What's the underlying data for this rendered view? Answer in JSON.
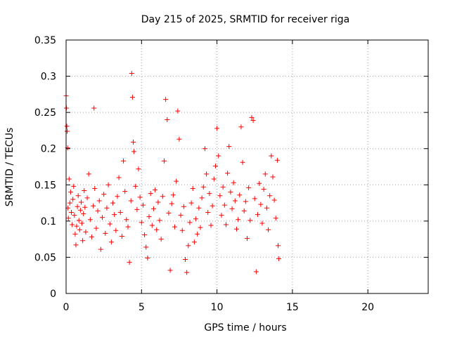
{
  "chart_data": {
    "type": "scatter",
    "title": "Day 215 of 2025, SRMTID for receiver riga",
    "xlabel": "GPS time / hours",
    "ylabel": "SRMTID / TECUs",
    "xlim": [
      0,
      24
    ],
    "ylim": [
      0,
      0.35
    ],
    "x_ticks": [
      0,
      5,
      10,
      15,
      20
    ],
    "x_tick_labels": [
      "0",
      "5",
      "10",
      "15",
      "20"
    ],
    "y_ticks": [
      0,
      0.05,
      0.1,
      0.15,
      0.2,
      0.25,
      0.3,
      0.35
    ],
    "y_tick_labels": [
      "0",
      "0.05",
      "0.1",
      "0.15",
      "0.2",
      "0.25",
      "0.3",
      "0.35"
    ],
    "grid": true,
    "marker": "+",
    "color": "#ff0000",
    "series": [
      {
        "points": [
          [
            0.0,
            0.273
          ],
          [
            0.02,
            0.256
          ],
          [
            0.05,
            0.231
          ],
          [
            0.07,
            0.224
          ],
          [
            0.1,
            0.201
          ],
          [
            0.12,
            0.118
          ],
          [
            0.15,
            0.104
          ],
          [
            0.2,
            0.158
          ],
          [
            0.25,
            0.125
          ],
          [
            0.3,
            0.14
          ],
          [
            0.35,
            0.112
          ],
          [
            0.4,
            0.095
          ],
          [
            0.45,
            0.13
          ],
          [
            0.5,
            0.148
          ],
          [
            0.55,
            0.108
          ],
          [
            0.6,
            0.082
          ],
          [
            0.65,
            0.067
          ],
          [
            0.7,
            0.093
          ],
          [
            0.75,
            0.12
          ],
          [
            0.8,
            0.135
          ],
          [
            0.85,
            0.101
          ],
          [
            0.9,
            0.088
          ],
          [
            0.95,
            0.115
          ],
          [
            1.0,
            0.126
          ],
          [
            1.05,
            0.097
          ],
          [
            1.1,
            0.073
          ],
          [
            1.15,
            0.11
          ],
          [
            1.2,
            0.142
          ],
          [
            1.25,
            0.119
          ],
          [
            1.3,
            0.085
          ],
          [
            1.4,
            0.132
          ],
          [
            1.5,
            0.165
          ],
          [
            1.6,
            0.102
          ],
          [
            1.7,
            0.078
          ],
          [
            1.8,
            0.121
          ],
          [
            1.85,
            0.256
          ],
          [
            1.9,
            0.145
          ],
          [
            2.0,
            0.09
          ],
          [
            2.1,
            0.114
          ],
          [
            2.2,
            0.128
          ],
          [
            2.3,
            0.061
          ],
          [
            2.4,
            0.105
          ],
          [
            2.5,
            0.137
          ],
          [
            2.6,
            0.083
          ],
          [
            2.7,
            0.118
          ],
          [
            2.8,
            0.15
          ],
          [
            2.9,
            0.096
          ],
          [
            3.0,
            0.071
          ],
          [
            3.1,
            0.125
          ],
          [
            3.2,
            0.109
          ],
          [
            3.3,
            0.087
          ],
          [
            3.4,
            0.134
          ],
          [
            3.5,
            0.16
          ],
          [
            3.6,
            0.112
          ],
          [
            3.7,
            0.079
          ],
          [
            3.8,
            0.183
          ],
          [
            3.9,
            0.141
          ],
          [
            4.0,
            0.102
          ],
          [
            4.1,
            0.092
          ],
          [
            4.2,
            0.043
          ],
          [
            4.3,
            0.128
          ],
          [
            4.35,
            0.304
          ],
          [
            4.4,
            0.271
          ],
          [
            4.45,
            0.209
          ],
          [
            4.5,
            0.196
          ],
          [
            4.6,
            0.148
          ],
          [
            4.7,
            0.116
          ],
          [
            4.8,
            0.172
          ],
          [
            4.9,
            0.133
          ],
          [
            5.0,
            0.098
          ],
          [
            5.1,
            0.122
          ],
          [
            5.2,
            0.081
          ],
          [
            5.3,
            0.064
          ],
          [
            5.4,
            0.049
          ],
          [
            5.5,
            0.106
          ],
          [
            5.6,
            0.138
          ],
          [
            5.7,
            0.094
          ],
          [
            5.8,
            0.117
          ],
          [
            5.9,
            0.143
          ],
          [
            6.0,
            0.088
          ],
          [
            6.1,
            0.126
          ],
          [
            6.2,
            0.101
          ],
          [
            6.3,
            0.075
          ],
          [
            6.4,
            0.134
          ],
          [
            6.5,
            0.183
          ],
          [
            6.6,
            0.268
          ],
          [
            6.7,
            0.24
          ],
          [
            6.8,
            0.111
          ],
          [
            6.9,
            0.032
          ],
          [
            7.0,
            0.124
          ],
          [
            7.1,
            0.136
          ],
          [
            7.2,
            0.092
          ],
          [
            7.3,
            0.155
          ],
          [
            7.4,
            0.252
          ],
          [
            7.5,
            0.213
          ],
          [
            7.6,
            0.108
          ],
          [
            7.7,
            0.087
          ],
          [
            7.8,
            0.12
          ],
          [
            7.9,
            0.047
          ],
          [
            8.0,
            0.029
          ],
          [
            8.1,
            0.066
          ],
          [
            8.2,
            0.098
          ],
          [
            8.3,
            0.125
          ],
          [
            8.4,
            0.145
          ],
          [
            8.5,
            0.071
          ],
          [
            8.6,
            0.103
          ],
          [
            8.7,
            0.082
          ],
          [
            8.8,
            0.118
          ],
          [
            8.9,
            0.091
          ],
          [
            9.0,
            0.132
          ],
          [
            9.1,
            0.147
          ],
          [
            9.2,
            0.2
          ],
          [
            9.3,
            0.165
          ],
          [
            9.4,
            0.112
          ],
          [
            9.5,
            0.138
          ],
          [
            9.6,
            0.094
          ],
          [
            9.7,
            0.121
          ],
          [
            9.8,
            0.158
          ],
          [
            9.9,
            0.176
          ],
          [
            10.0,
            0.228
          ],
          [
            10.1,
            0.19
          ],
          [
            10.2,
            0.135
          ],
          [
            10.3,
            0.108
          ],
          [
            10.4,
            0.147
          ],
          [
            10.5,
            0.122
          ],
          [
            10.6,
            0.095
          ],
          [
            10.7,
            0.166
          ],
          [
            10.8,
            0.203
          ],
          [
            10.9,
            0.14
          ],
          [
            11.0,
            0.117
          ],
          [
            11.1,
            0.153
          ],
          [
            11.2,
            0.128
          ],
          [
            11.3,
            0.089
          ],
          [
            11.4,
            0.102
          ],
          [
            11.5,
            0.136
          ],
          [
            11.6,
            0.23
          ],
          [
            11.7,
            0.181
          ],
          [
            11.8,
            0.114
          ],
          [
            11.9,
            0.127
          ],
          [
            12.0,
            0.076
          ],
          [
            12.1,
            0.146
          ],
          [
            12.2,
            0.101
          ],
          [
            12.3,
            0.243
          ],
          [
            12.4,
            0.239
          ],
          [
            12.5,
            0.131
          ],
          [
            12.6,
            0.03
          ],
          [
            12.7,
            0.109
          ],
          [
            12.8,
            0.152
          ],
          [
            12.9,
            0.123
          ],
          [
            13.0,
            0.097
          ],
          [
            13.1,
            0.144
          ],
          [
            13.2,
            0.165
          ],
          [
            13.3,
            0.118
          ],
          [
            13.4,
            0.088
          ],
          [
            13.5,
            0.135
          ],
          [
            13.6,
            0.19
          ],
          [
            13.7,
            0.161
          ],
          [
            13.8,
            0.129
          ],
          [
            13.9,
            0.104
          ],
          [
            14.0,
            0.184
          ],
          [
            14.05,
            0.066
          ],
          [
            14.1,
            0.048
          ]
        ]
      }
    ]
  }
}
